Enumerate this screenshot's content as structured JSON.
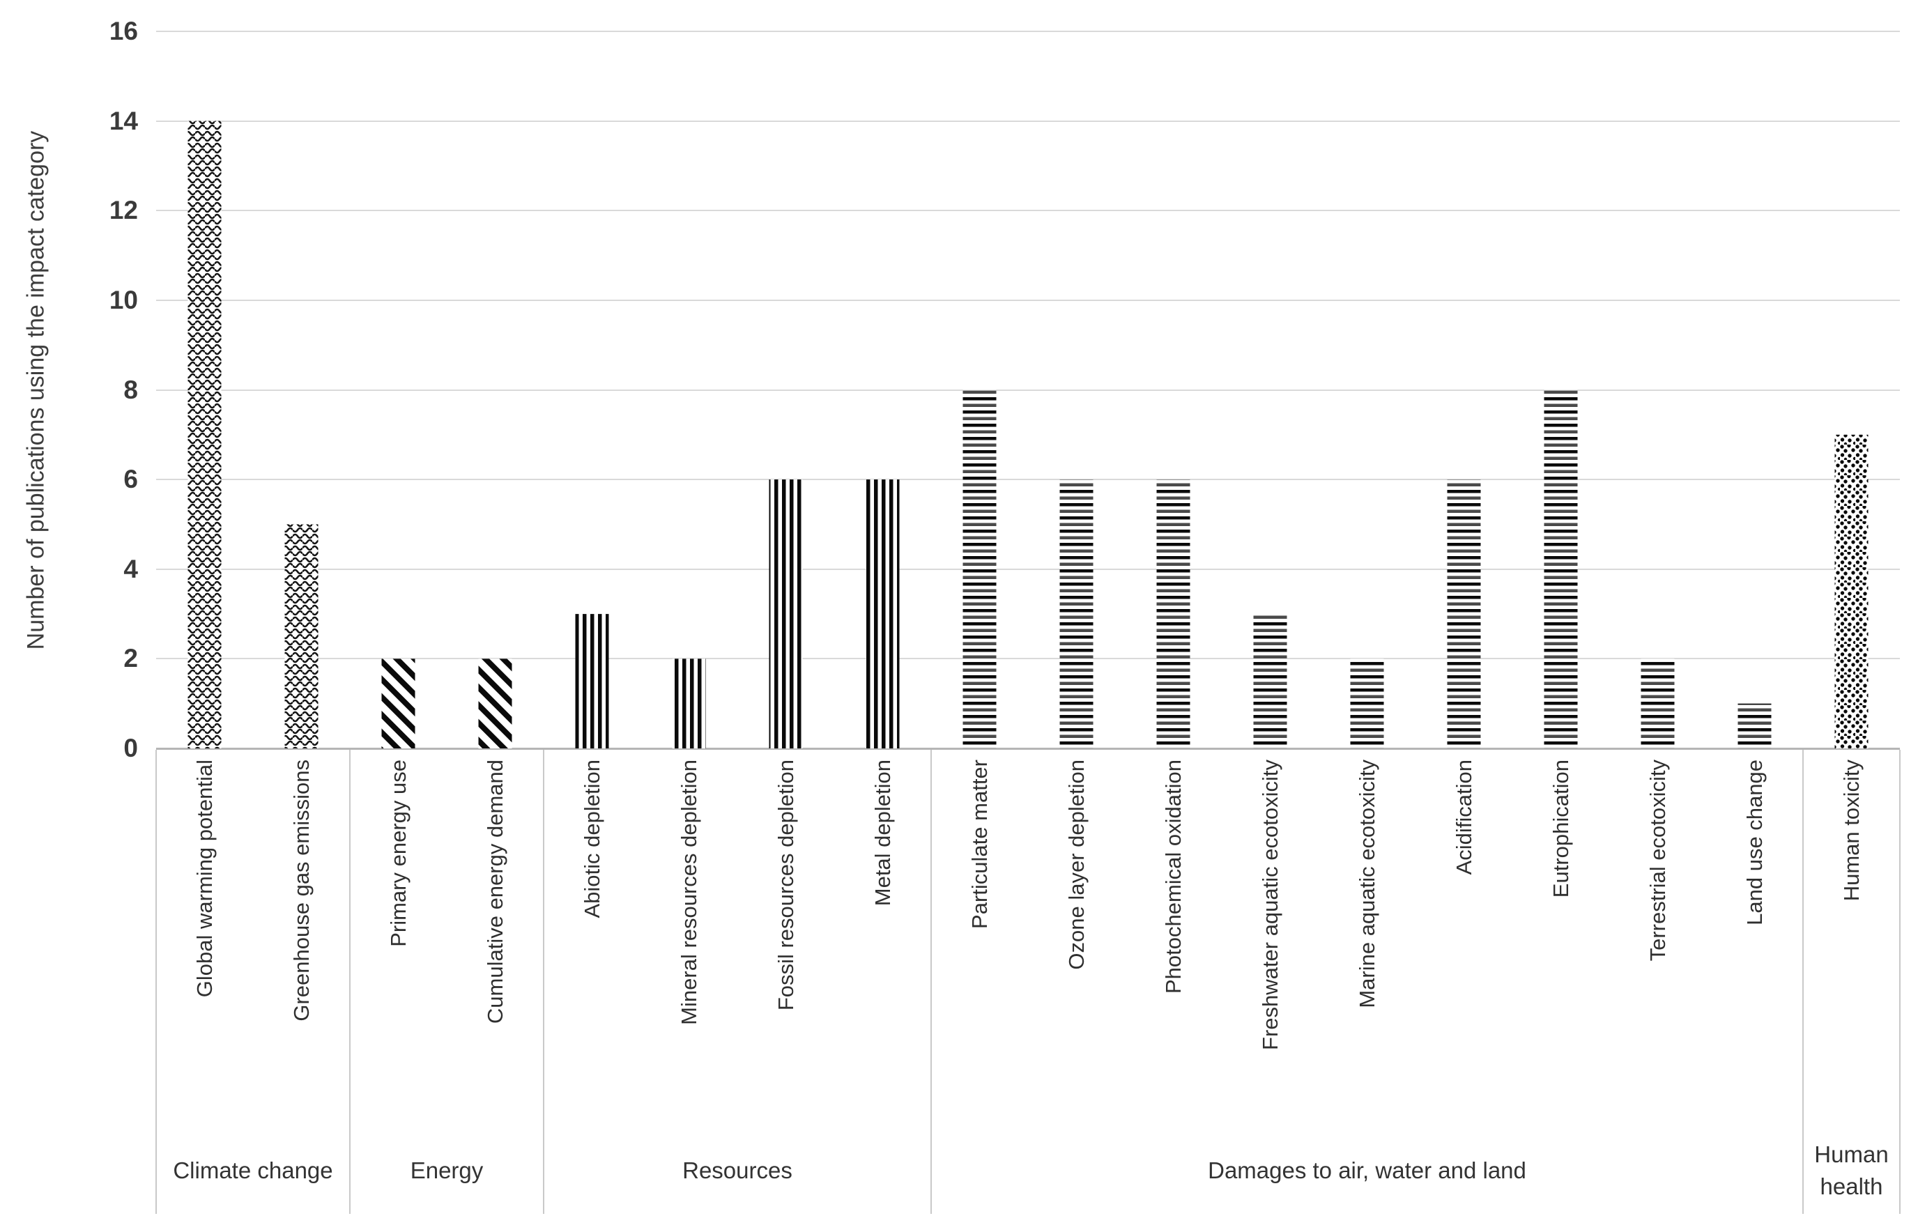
{
  "chart_data": {
    "type": "bar",
    "title": "",
    "ylabel": "Number of publications using the impact category",
    "xlabel": "",
    "ylim": [
      0,
      16
    ],
    "yticks": [
      0,
      2,
      4,
      6,
      8,
      10,
      12,
      14,
      16
    ],
    "grid": "horizontal gridlines every 2 units",
    "legend": "none",
    "bar_fill_style": "black-and-white texture patterns, one pattern per group",
    "groups": [
      {
        "label": "Climate change",
        "pattern": "wave",
        "categories": [
          "Global warming potential",
          "Greenhouse gas emissions"
        ],
        "values": [
          14,
          5
        ]
      },
      {
        "label": "Energy",
        "pattern": "diagonal-stripes",
        "categories": [
          "Primary energy use",
          "Cumulative energy demand"
        ],
        "values": [
          2,
          2
        ]
      },
      {
        "label": "Resources",
        "pattern": "vertical-stripes",
        "categories": [
          "Abiotic depletion",
          "Mineral resources depletion",
          "Fossil resources depletion",
          "Metal depletion"
        ],
        "values": [
          3,
          2,
          6,
          6
        ]
      },
      {
        "label": "Damages to air, water and land",
        "pattern": "horizontal-stripes",
        "categories": [
          "Particulate matter",
          "Ozone layer depletion",
          "Photochemical oxidation",
          "Freshwater aquatic ecotoxicity",
          "Marine aquatic ecotoxicity",
          "Acidification",
          "Eutrophication",
          "Terrestrial ecotoxicity",
          "Land use change"
        ],
        "values": [
          8,
          6,
          6,
          3,
          2,
          6,
          8,
          2,
          1
        ]
      },
      {
        "label": "Human health",
        "pattern": "dots",
        "categories": [
          "Human toxicity"
        ],
        "values": [
          7
        ]
      }
    ],
    "colors": {
      "bar_pattern": "#0a0a0a",
      "grid": "#d9d9d9",
      "axis": "#b5b5b5",
      "separator": "#c9c9c9",
      "text": "#3d3d3d",
      "background": "#ffffff"
    }
  }
}
